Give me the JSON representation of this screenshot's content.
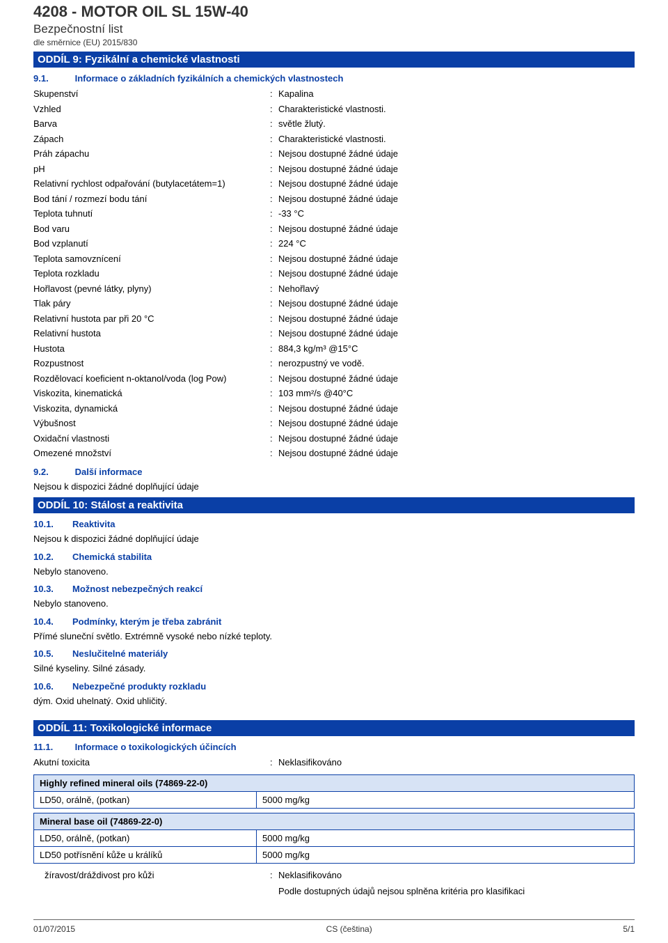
{
  "header": {
    "title": "4208 - MOTOR OIL SL 15W-40",
    "subtitle": "Bezpečnostní list",
    "regulation": "dle směrnice (EU) 2015/830"
  },
  "section9": {
    "header": "ODDÍL 9: Fyzikální a chemické vlastnosti",
    "sub1": {
      "num": "9.1.",
      "title": "Informace o základních fyzikálních a chemických vlastnostech"
    },
    "rows": [
      {
        "label": "Skupenství",
        "value": "Kapalina"
      },
      {
        "label": "Vzhled",
        "value": "Charakteristické vlastnosti."
      },
      {
        "label": "Barva",
        "value": "světle žlutý."
      },
      {
        "label": "Zápach",
        "value": "Charakteristické vlastnosti."
      },
      {
        "label": "Práh zápachu",
        "value": "Nejsou dostupné žádné údaje"
      },
      {
        "label": "pH",
        "value": "Nejsou dostupné žádné údaje"
      },
      {
        "label": "Relativní rychlost odpařování (butylacetátem=1)",
        "value": "Nejsou dostupné žádné údaje"
      },
      {
        "label": "Bod tání / rozmezí bodu tání",
        "value": "Nejsou dostupné žádné údaje"
      },
      {
        "label": "Teplota tuhnutí",
        "value": "-33 °C"
      },
      {
        "label": "Bod varu",
        "value": "Nejsou dostupné žádné údaje"
      },
      {
        "label": "Bod vzplanutí",
        "value": "224 °C"
      },
      {
        "label": "Teplota samovznícení",
        "value": "Nejsou dostupné žádné údaje"
      },
      {
        "label": "Teplota rozkladu",
        "value": "Nejsou dostupné žádné údaje"
      },
      {
        "label": "Hořlavost (pevné látky, plyny)",
        "value": "Nehořlavý"
      },
      {
        "label": "Tlak páry",
        "value": "Nejsou dostupné žádné údaje"
      },
      {
        "label": "Relativní hustota par při 20 °C",
        "value": "Nejsou dostupné žádné údaje"
      },
      {
        "label": "Relativní hustota",
        "value": "Nejsou dostupné žádné údaje"
      },
      {
        "label": "Hustota",
        "value": "884,3 kg/m³ @15°C"
      },
      {
        "label": "Rozpustnost",
        "value": "nerozpustný ve vodě."
      },
      {
        "label": "Rozdělovací koeficient n-oktanol/voda (log Pow)",
        "value": "Nejsou dostupné žádné údaje"
      },
      {
        "label": "Viskozita, kinematická",
        "value": "103 mm²/s @40°C"
      },
      {
        "label": "Viskozita, dynamická",
        "value": "Nejsou dostupné žádné údaje"
      },
      {
        "label": "Výbušnost",
        "value": "Nejsou dostupné žádné údaje"
      },
      {
        "label": "Oxidační vlastnosti",
        "value": "Nejsou dostupné žádné údaje"
      },
      {
        "label": "Omezené množství",
        "value": "Nejsou dostupné žádné údaje"
      }
    ],
    "sub2": {
      "num": "9.2.",
      "title": "Další informace",
      "body": "Nejsou k dispozici žádné doplňující údaje"
    }
  },
  "section10": {
    "header": "ODDÍL 10: Stálost a reaktivita",
    "items": [
      {
        "num": "10.1.",
        "title": "Reaktivita",
        "body": "Nejsou k dispozici žádné doplňující údaje"
      },
      {
        "num": "10.2.",
        "title": "Chemická stabilita",
        "body": "Nebylo stanoveno."
      },
      {
        "num": "10.3.",
        "title": "Možnost nebezpečných reakcí",
        "body": "Nebylo stanoveno."
      },
      {
        "num": "10.4.",
        "title": "Podmínky, kterým je třeba zabránit",
        "body": "Přímé sluneční světlo. Extrémně vysoké nebo nízké teploty."
      },
      {
        "num": "10.5.",
        "title": "Neslučitelné materiály",
        "body": "Silné kyseliny. Silné zásady."
      },
      {
        "num": "10.6.",
        "title": "Nebezpečné produkty rozkladu",
        "body": "dým. Oxid uhelnatý. Oxid uhličitý."
      }
    ]
  },
  "section11": {
    "header": "ODDÍL 11: Toxikologické informace",
    "sub1": {
      "num": "11.1.",
      "title": "Informace o toxikologických účincích"
    },
    "acute": {
      "label": "Akutní toxicita",
      "value": "Neklasifikováno"
    },
    "tables": [
      {
        "header": "Highly refined mineral oils (74869-22-0)",
        "rows": [
          {
            "l": "LD50, orálně, (potkan)",
            "r": "5000 mg/kg"
          }
        ]
      },
      {
        "header": "Mineral base oil (74869-22-0)",
        "rows": [
          {
            "l": "LD50, orálně, (potkan)",
            "r": "5000 mg/kg"
          },
          {
            "l": "LD50 potřísnění kůže u králíků",
            "r": "5000 mg/kg"
          }
        ]
      }
    ],
    "skin": {
      "label": "žíravost/dráždivost pro kůži",
      "value": "Neklasifikováno"
    },
    "skin_note": "Podle dostupných údajů nejsou splněna kritéria pro klasifikaci"
  },
  "footer": {
    "left": "01/07/2015",
    "center": "CS (čeština)",
    "right": "5/1"
  }
}
